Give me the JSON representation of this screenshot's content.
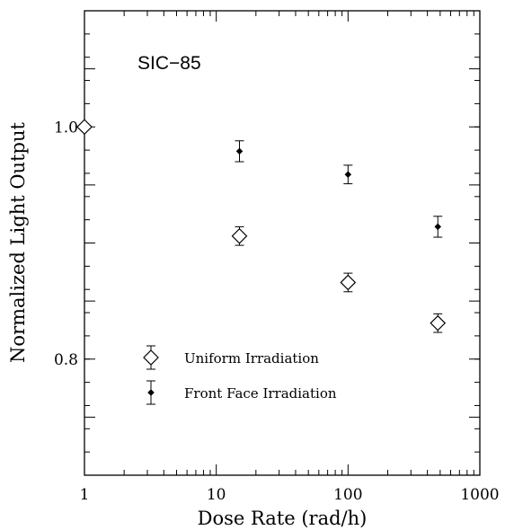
{
  "chart_data": {
    "type": "scatter",
    "xlabel": "Dose Rate (rad/h)",
    "ylabel": "Normalized Light Output",
    "xscale": "log",
    "xlim": [
      1,
      1000
    ],
    "ylim": [
      0.7,
      1.1
    ],
    "x_ticks": [
      {
        "value": 1,
        "label": "1"
      },
      {
        "value": 10,
        "label": "10"
      },
      {
        "value": 100,
        "label": "100"
      },
      {
        "value": 1000,
        "label": "1000"
      }
    ],
    "y_ticks": [
      {
        "value": 0.8,
        "label": "0.8"
      },
      {
        "value": 1.0,
        "label": "1.0"
      }
    ],
    "annotation": "SIC−85",
    "legend_position": "bottom-left",
    "grid": false,
    "series": [
      {
        "name": "Uniform Irradiation",
        "marker": "open-diamond",
        "points": [
          {
            "x": 1,
            "y": 1.0,
            "err": 0
          },
          {
            "x": 15,
            "y": 0.906,
            "err": 0.008
          },
          {
            "x": 100,
            "y": 0.866,
            "err": 0.008
          },
          {
            "x": 480,
            "y": 0.831,
            "err": 0.008
          }
        ]
      },
      {
        "name": "Front Face Irradiation",
        "marker": "small-filled-diamond",
        "points": [
          {
            "x": 15,
            "y": 0.979,
            "err": 0.009
          },
          {
            "x": 100,
            "y": 0.959,
            "err": 0.008
          },
          {
            "x": 480,
            "y": 0.914,
            "err": 0.009
          }
        ]
      }
    ]
  }
}
